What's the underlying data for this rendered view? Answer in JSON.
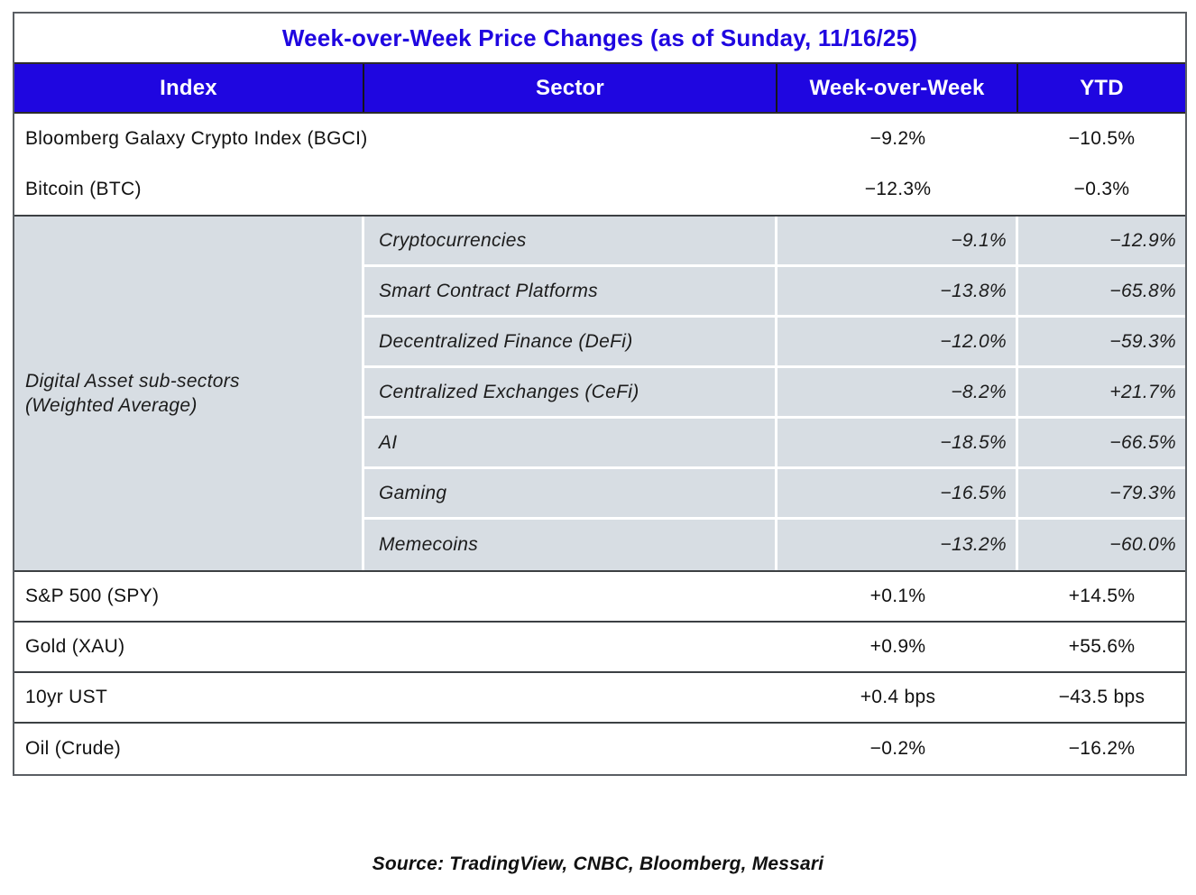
{
  "table": {
    "title": "Week-over-Week Price Changes (as of Sunday, 11/16/25)",
    "columns": {
      "index": "Index",
      "sector": "Sector",
      "wow": "Week-over-Week",
      "ytd": "YTD"
    },
    "top_rows": [
      {
        "index": "Bloomberg Galaxy Crypto Index (BGCI)",
        "wow": "−9.2%",
        "ytd": "−10.5%"
      },
      {
        "index": "Bitcoin (BTC)",
        "wow": "−12.3%",
        "ytd": "−0.3%"
      }
    ],
    "subsector_group": {
      "index_label_line1": "Digital Asset sub-sectors",
      "index_label_line2": "(Weighted Average)",
      "rows": [
        {
          "sector": "Cryptocurrencies",
          "wow": "−9.1%",
          "ytd": "−12.9%"
        },
        {
          "sector": "Smart Contract Platforms",
          "wow": "−13.8%",
          "ytd": "−65.8%"
        },
        {
          "sector": "Decentralized Finance (DeFi)",
          "wow": "−12.0%",
          "ytd": "−59.3%"
        },
        {
          "sector": "Centralized Exchanges (CeFi)",
          "wow": "−8.2%",
          "ytd": "+21.7%"
        },
        {
          "sector": "AI",
          "wow": "−18.5%",
          "ytd": "−66.5%"
        },
        {
          "sector": "Gaming",
          "wow": "−16.5%",
          "ytd": "−79.3%"
        },
        {
          "sector": "Memecoins",
          "wow": "−13.2%",
          "ytd": "−60.0%"
        }
      ]
    },
    "bottom_rows": [
      {
        "index": "S&P 500 (SPY)",
        "wow": "+0.1%",
        "ytd": "+14.5%"
      },
      {
        "index": "Gold (XAU)",
        "wow": "+0.9%",
        "ytd": "+55.6%"
      },
      {
        "index": "10yr UST",
        "wow": "+0.4 bps",
        "ytd": "−43.5 bps"
      },
      {
        "index": "Oil (Crude)",
        "wow": "−0.2%",
        "ytd": "−16.2%"
      }
    ]
  },
  "footer": {
    "source": "Source: TradingView, CNBC, Bloomberg, Messari"
  },
  "colors": {
    "accent_blue": "#1F06E0",
    "subsector_bg": "#D7DDE3",
    "border_outer": "#5A5E63",
    "border_inner": "#3C4043",
    "header_text": "#FFFFFF"
  }
}
